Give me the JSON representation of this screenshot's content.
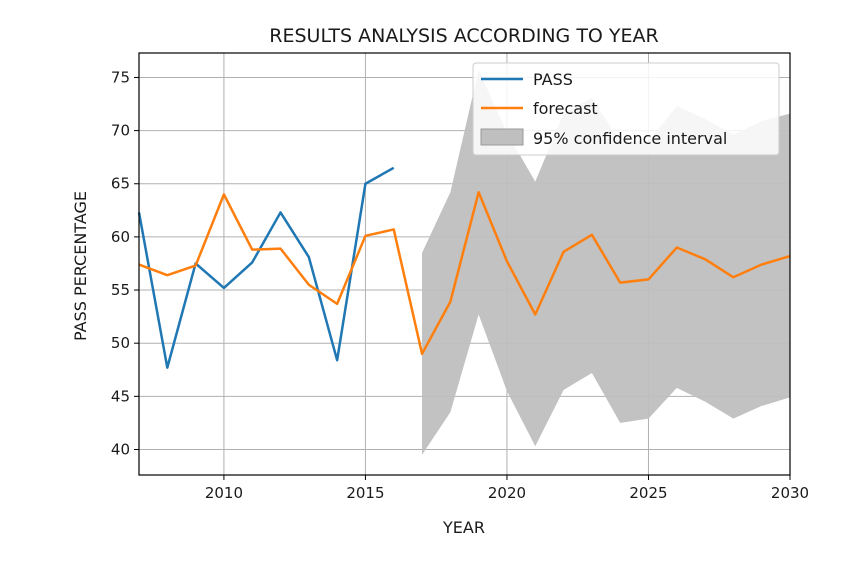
{
  "chart_data": {
    "type": "line",
    "title": "RESULTS ANALYSIS ACCORDING TO YEAR",
    "xlabel": "YEAR",
    "ylabel": "PASS PERCENTAGE",
    "xlim": [
      2007,
      2030
    ],
    "ylim": [
      37.6,
      77.3
    ],
    "xticks": [
      2010,
      2015,
      2020,
      2025,
      2030
    ],
    "yticks": [
      40,
      45,
      50,
      55,
      60,
      65,
      70,
      75
    ],
    "grid": true,
    "legend_position": "top-right",
    "series": [
      {
        "name": "PASS",
        "color": "#1f77b4",
        "x": [
          2007,
          2008,
          2009,
          2010,
          2011,
          2012,
          2013,
          2014,
          2015,
          2016
        ],
        "y": [
          62.3,
          47.7,
          57.5,
          55.2,
          57.6,
          62.3,
          58.1,
          48.4,
          65.0,
          66.5
        ]
      },
      {
        "name": "forecast",
        "color": "#ff7f0e",
        "x": [
          2007,
          2008,
          2009,
          2010,
          2011,
          2012,
          2013,
          2014,
          2015,
          2016,
          2017,
          2018,
          2019,
          2020,
          2021,
          2022,
          2023,
          2024,
          2025,
          2026,
          2027,
          2028,
          2029,
          2030
        ],
        "y": [
          57.4,
          56.4,
          57.3,
          64.0,
          58.8,
          58.9,
          55.5,
          53.7,
          60.1,
          60.7,
          49.0,
          53.9,
          64.2,
          57.7,
          52.7,
          58.6,
          60.2,
          55.7,
          56.0,
          59.0,
          57.9,
          56.2,
          57.4,
          58.2
        ]
      }
    ],
    "confidence_interval": {
      "name": "95% confidence interval",
      "color": "#bfbfbf",
      "x": [
        2017,
        2018,
        2019,
        2020,
        2021,
        2022,
        2023,
        2024,
        2025,
        2026,
        2027,
        2028,
        2029,
        2030
      ],
      "lower": [
        39.5,
        43.5,
        52.7,
        45.5,
        40.3,
        45.6,
        47.2,
        42.5,
        42.9,
        45.8,
        44.5,
        42.9,
        44.1,
        44.9
      ],
      "upper": [
        58.5,
        64.2,
        75.7,
        69.8,
        65.2,
        71.6,
        73.1,
        68.9,
        69.0,
        72.3,
        71.1,
        69.6,
        70.9,
        71.6
      ]
    }
  }
}
